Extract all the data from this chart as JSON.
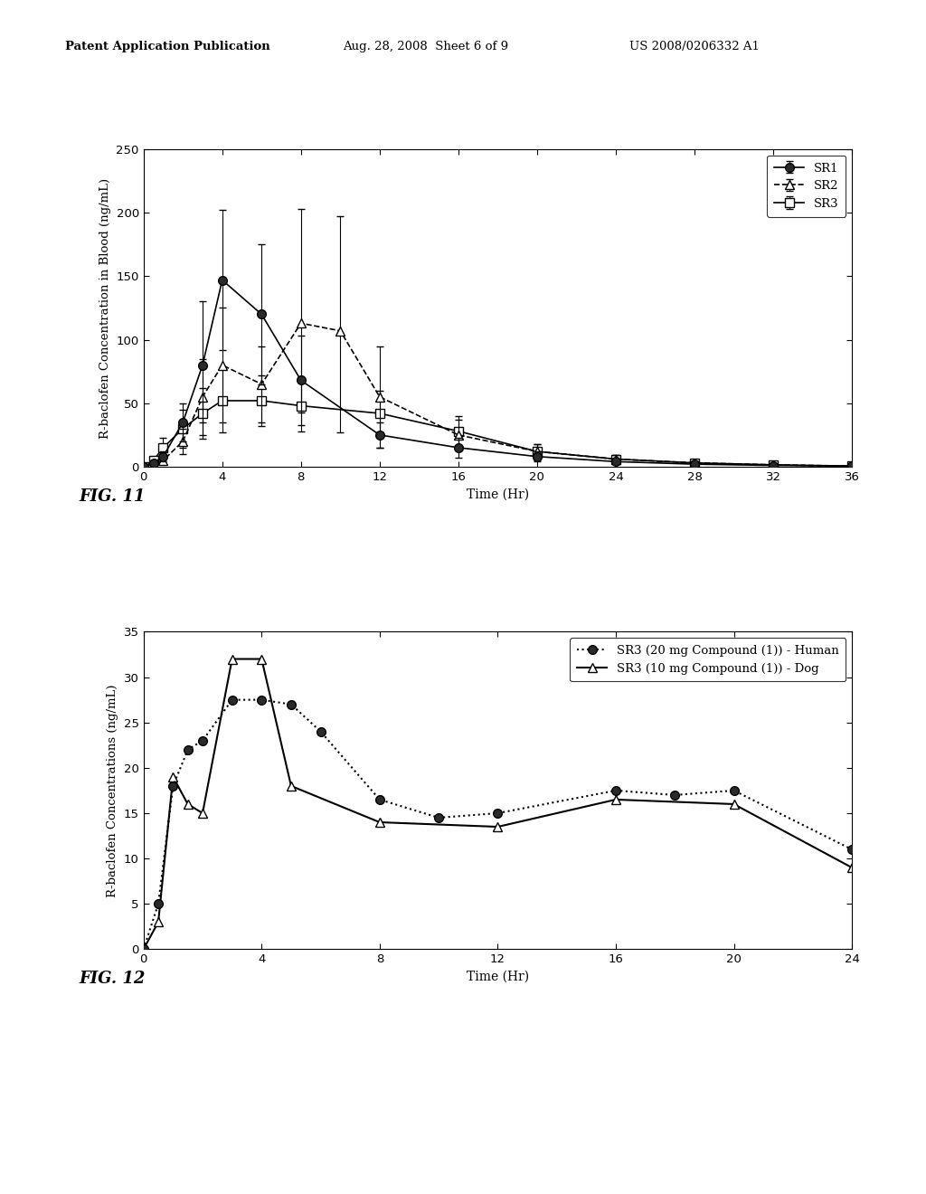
{
  "fig11": {
    "sr1_x": [
      0,
      0.5,
      1,
      2,
      3,
      4,
      6,
      8,
      12,
      16,
      20,
      24,
      28,
      32,
      36
    ],
    "sr1_y": [
      0,
      3,
      8,
      35,
      80,
      147,
      120,
      68,
      25,
      15,
      8,
      4,
      2,
      1,
      0.5
    ],
    "sr1_yerr_lo": [
      0,
      2,
      4,
      15,
      45,
      55,
      55,
      35,
      10,
      8,
      4,
      2,
      1,
      0.5,
      0
    ],
    "sr1_yerr_hi": [
      0,
      2,
      4,
      15,
      50,
      55,
      55,
      35,
      10,
      8,
      4,
      2,
      1,
      0.5,
      0
    ],
    "sr2_x": [
      0,
      0.5,
      1,
      2,
      3,
      4,
      6,
      8,
      10,
      12,
      16,
      20,
      24,
      28,
      32,
      36
    ],
    "sr2_y": [
      0,
      2,
      5,
      20,
      55,
      80,
      65,
      113,
      107,
      55,
      25,
      12,
      6,
      3,
      1.5,
      0.5
    ],
    "sr2_yerr_lo": [
      0,
      1,
      3,
      10,
      30,
      45,
      30,
      70,
      80,
      40,
      12,
      6,
      3,
      1.5,
      0.5,
      0.2
    ],
    "sr2_yerr_hi": [
      0,
      1,
      3,
      10,
      30,
      45,
      30,
      90,
      90,
      40,
      12,
      6,
      3,
      1.5,
      0.5,
      0.2
    ],
    "sr3_x": [
      0,
      0.5,
      1,
      2,
      3,
      4,
      6,
      8,
      12,
      16,
      20,
      24,
      28,
      32,
      36
    ],
    "sr3_y": [
      0,
      5,
      15,
      30,
      42,
      52,
      52,
      48,
      42,
      28,
      12,
      6,
      3,
      1.5,
      0.5
    ],
    "sr3_yerr_lo": [
      0,
      3,
      8,
      15,
      20,
      25,
      20,
      20,
      18,
      12,
      6,
      3,
      1.5,
      0.5,
      0.2
    ],
    "sr3_yerr_hi": [
      0,
      3,
      8,
      15,
      20,
      25,
      20,
      20,
      18,
      12,
      6,
      3,
      1.5,
      0.5,
      0.2
    ],
    "ylabel": "R-baclofen Concentration in Blood (ng/mL)",
    "xlabel": "Time (Hr)",
    "xlim": [
      0,
      36
    ],
    "ylim": [
      0,
      250
    ],
    "xticks": [
      0,
      4,
      8,
      12,
      16,
      20,
      24,
      28,
      32,
      36
    ],
    "yticks": [
      0,
      50,
      100,
      150,
      200,
      250
    ],
    "fig_label": "FIG. 11"
  },
  "fig12": {
    "human_x": [
      0,
      0.5,
      1,
      1.5,
      2,
      3,
      4,
      5,
      6,
      8,
      10,
      12,
      16,
      18,
      20,
      24
    ],
    "human_y": [
      0,
      5,
      18,
      22,
      23,
      27.5,
      27.5,
      27,
      24,
      16.5,
      14.5,
      15,
      17.5,
      17,
      17.5,
      11
    ],
    "dog_x": [
      0,
      0.5,
      1,
      1.5,
      2,
      3,
      4,
      5,
      8,
      12,
      16,
      20,
      24
    ],
    "dog_y": [
      0,
      3,
      19,
      16,
      15,
      32,
      32,
      18,
      14,
      13.5,
      16.5,
      16,
      9
    ],
    "ylabel": "R-baclofen Concentrations (ng/mL)",
    "xlabel": "Time (Hr)",
    "xlim": [
      0,
      24
    ],
    "ylim": [
      0,
      35
    ],
    "xticks": [
      0,
      4,
      8,
      12,
      16,
      20,
      24
    ],
    "yticks": [
      0,
      5,
      10,
      15,
      20,
      25,
      30,
      35
    ],
    "fig_label": "FIG. 12",
    "legend1": "SR3 (20 mg Compound (1)) - Human",
    "legend2": "SR3 (10 mg Compound (1)) - Dog"
  },
  "header_left": "Patent Application Publication",
  "header_mid": "Aug. 28, 2008  Sheet 6 of 9",
  "header_right": "US 2008/0206332 A1",
  "bg_color": "#ffffff"
}
